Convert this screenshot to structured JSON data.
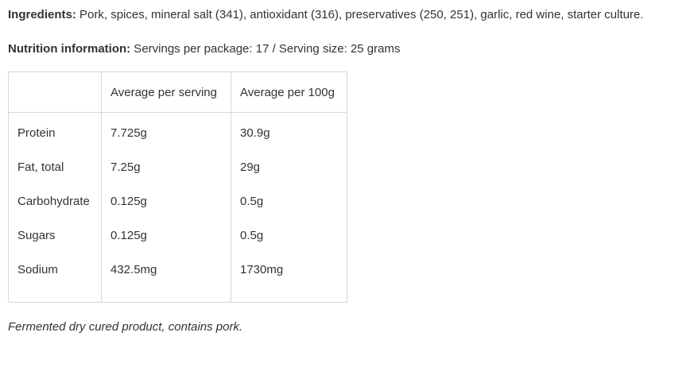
{
  "ingredients": {
    "label": "Ingredients:",
    "text": " Pork, spices, mineral salt (341), antioxidant (316), preservatives (250, 251), garlic, red wine, starter culture."
  },
  "nutrition": {
    "label": "Nutrition information:",
    "text": " Servings per package: 17 / Serving size: 25 grams"
  },
  "table": {
    "headers": [
      "",
      "Average per serving",
      "Average per 100g"
    ],
    "rows": [
      [
        "Protein",
        "7.725g",
        "30.9g"
      ],
      [
        "Fat, total",
        "7.25g",
        "29g"
      ],
      [
        "Carbohydrate",
        "0.125g",
        "0.5g"
      ],
      [
        "Sugars",
        "0.125g",
        "0.5g"
      ],
      [
        "Sodium",
        "432.5mg",
        "1730mg"
      ]
    ]
  },
  "note": "Fermented dry cured product, contains pork."
}
